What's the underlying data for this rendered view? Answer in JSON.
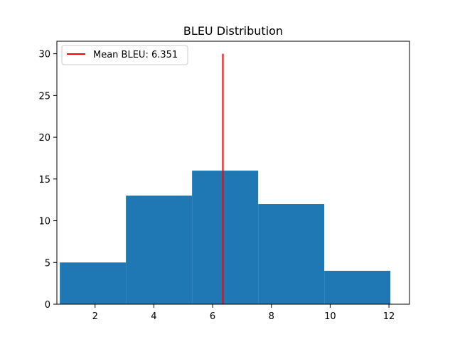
{
  "chart_data": {
    "type": "bar",
    "title": "BLEU Distribution",
    "xlabel": "",
    "ylabel": "",
    "xlim": [
      0.7,
      12.7
    ],
    "ylim": [
      0,
      31.5
    ],
    "x_ticks": [
      2,
      4,
      6,
      8,
      10,
      12
    ],
    "y_ticks": [
      0,
      5,
      10,
      15,
      20,
      25,
      30
    ],
    "bins": [
      {
        "start": 0.8,
        "end": 3.05,
        "count": 5
      },
      {
        "start": 3.05,
        "end": 5.3,
        "count": 13
      },
      {
        "start": 5.3,
        "end": 7.55,
        "count": 16
      },
      {
        "start": 7.55,
        "end": 9.8,
        "count": 12
      },
      {
        "start": 9.8,
        "end": 12.05,
        "count": 4
      }
    ],
    "bar_color": "#1f77b4",
    "mean_line": {
      "x": 6.351,
      "y_start": 0,
      "y_end": 30,
      "color": "#ff0000",
      "label": "Mean BLEU: 6.351"
    },
    "legend_position": "upper-left",
    "grid": false
  }
}
